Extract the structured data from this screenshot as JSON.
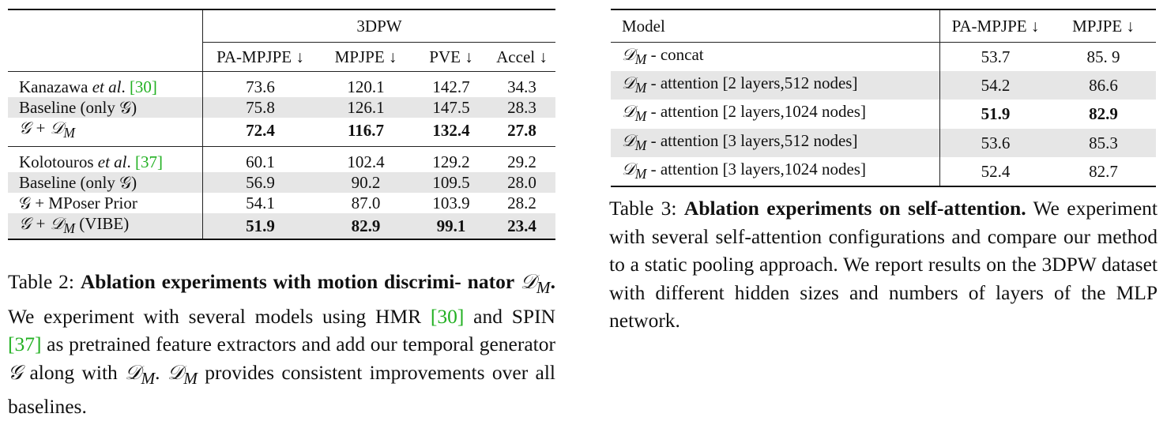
{
  "table2": {
    "dataset_header": "3DPW",
    "columns": [
      "PA-MPJPE ↓",
      "MPJPE ↓",
      "PVE ↓",
      "Accel ↓"
    ],
    "rows": [
      {
        "label_pre": "Kanazawa ",
        "label_em": "et al",
        "label_post": ". ",
        "cite": "[30]",
        "values": [
          "73.6",
          "120.1",
          "142.7",
          "34.3"
        ]
      },
      {
        "label": "Baseline (only 𝒢)",
        "values": [
          "75.8",
          "126.1",
          "147.5",
          "28.3"
        ]
      },
      {
        "label": "𝒢 + 𝒟",
        "sub": "M",
        "values": [
          "72.4",
          "116.7",
          "132.4",
          "27.8"
        ]
      },
      {
        "label_pre": "Kolotouros ",
        "label_em": "et al",
        "label_post": ". ",
        "cite": "[37]",
        "values": [
          "60.1",
          "102.4",
          "129.2",
          "29.2"
        ]
      },
      {
        "label": "Baseline (only 𝒢)",
        "values": [
          "56.9",
          "90.2",
          "109.5",
          "28.0"
        ]
      },
      {
        "label": "𝒢 + MPoser Prior",
        "values": [
          "54.1",
          "87.0",
          "103.9",
          "28.2"
        ]
      },
      {
        "label": "𝒢 + 𝒟",
        "sub": "M",
        "suffix": " (VIBE)",
        "values": [
          "51.9",
          "82.9",
          "99.1",
          "23.4"
        ]
      }
    ]
  },
  "table3": {
    "columns": [
      "Model",
      "PA-MPJPE ↓",
      "MPJPE ↓"
    ],
    "rows": [
      {
        "sym": "𝒟",
        "sub": "M",
        "label": " - concat",
        "values": [
          "53.7",
          "85. 9"
        ]
      },
      {
        "sym": "𝒟",
        "sub": "M",
        "label": " - attention [2 layers,512 nodes]",
        "values": [
          "54.2",
          "86.6"
        ]
      },
      {
        "sym": "𝒟",
        "sub": "M",
        "label": " - attention [2 layers,1024 nodes]",
        "values": [
          "51.9",
          "82.9"
        ]
      },
      {
        "sym": "𝒟",
        "sub": "M",
        "label": " - attention [3 layers,512 nodes]",
        "values": [
          "53.6",
          "85.3"
        ]
      },
      {
        "sym": "𝒟",
        "sub": "M",
        "label": " - attention [3 layers,1024 nodes]",
        "values": [
          "52.4",
          "82.7"
        ]
      }
    ]
  },
  "caption2": {
    "lead": "Table 2: ",
    "title": "Ablation experiments with motion discrimi- nator ",
    "title_sym": "𝒟",
    "title_sub": "M",
    "title_end": ".",
    "p1": " We experiment with several models using HMR ",
    "cite1": "[30]",
    "p2": " and SPIN ",
    "cite2": "[37]",
    "p3": " as pretrained feature extractors and add our temporal generator ",
    "gen": "𝒢",
    "p4": " along with ",
    "sym": "𝒟",
    "sub": "M",
    "p5": ". ",
    "p6": " provides consistent improvements over all baselines."
  },
  "caption3": {
    "lead": "Table 3: ",
    "title": "Ablation experiments on self-attention.",
    "body": " We experiment with several self-attention configurations and compare our method to a static pooling approach. We report results on the 3DPW dataset with different hidden sizes and numbers of layers of the MLP network."
  },
  "colors": {
    "cite": "#22b022",
    "row_shade": "#e6e6e6"
  }
}
